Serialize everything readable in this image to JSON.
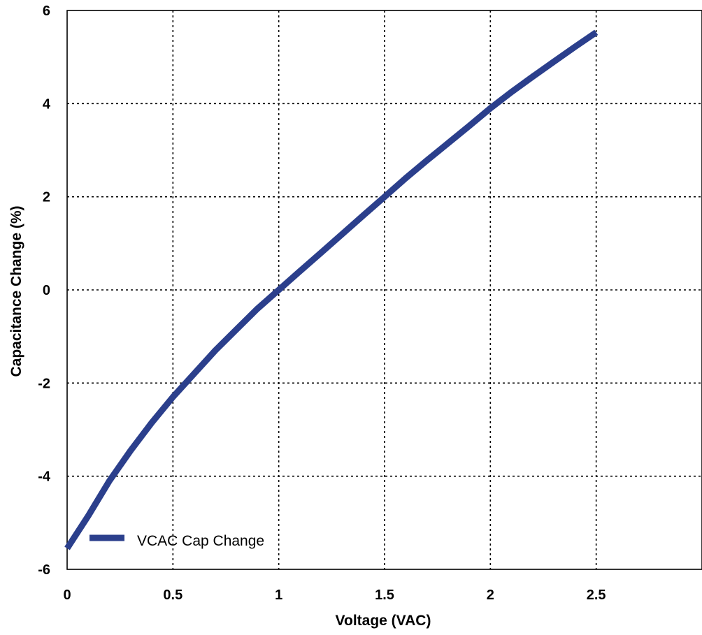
{
  "chart_data": {
    "type": "line",
    "title": "",
    "xlabel": "Voltage (VAC)",
    "ylabel": "Capacitance Change (%)",
    "xlim": [
      0,
      3
    ],
    "ylim": [
      -6,
      6
    ],
    "xticks": [
      0,
      0.5,
      1,
      1.5,
      2,
      2.5
    ],
    "xtick_labels": [
      "0",
      "0.5",
      "1",
      "1.5",
      "2",
      "2.5"
    ],
    "yticks": [
      -6,
      -4,
      -2,
      0,
      2,
      4,
      6
    ],
    "ytick_labels": [
      "-6",
      "-4",
      "-2",
      "0",
      "2",
      "4",
      "6"
    ],
    "grid": true,
    "legend_position": "bottom-left",
    "series": [
      {
        "name": "VCAC Cap Change",
        "color": "#2b3f8c",
        "x": [
          0,
          0.1,
          0.2,
          0.3,
          0.4,
          0.5,
          0.6,
          0.7,
          0.8,
          0.9,
          1.0,
          1.1,
          1.2,
          1.3,
          1.4,
          1.5,
          1.6,
          1.7,
          1.8,
          1.9,
          2.0,
          2.1,
          2.2,
          2.3,
          2.4,
          2.5
        ],
        "y": [
          -5.55,
          -4.85,
          -4.1,
          -3.45,
          -2.85,
          -2.3,
          -1.8,
          -1.3,
          -0.85,
          -0.4,
          0.0,
          0.4,
          0.8,
          1.2,
          1.6,
          2.0,
          2.4,
          2.78,
          3.15,
          3.52,
          3.9,
          4.25,
          4.58,
          4.9,
          5.22,
          5.53
        ]
      }
    ]
  }
}
